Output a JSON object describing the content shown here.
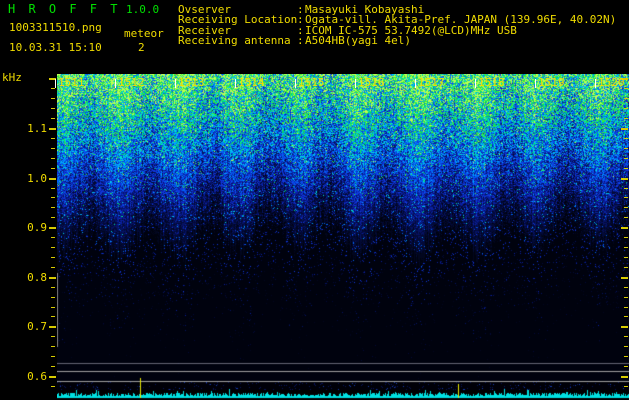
{
  "header": {
    "app_title": "H R O F F T",
    "app_version": "1.0.0",
    "filename": "1003311510.png",
    "mode": "meteor",
    "timestamp": "10.03.31 15:10",
    "count": "2",
    "info_rows": [
      {
        "label": "Ovserver",
        "sep": ":",
        "value": "Masayuki Kobayashi"
      },
      {
        "label": "Receiving Location",
        "sep": ":",
        "value": "Ogata-vill. Akita-Pref. JAPAN (139.96E, 40.02N)"
      },
      {
        "label": "Receiver",
        "sep": ":",
        "value": "ICOM IC-575 53.7492(@LCD)MHz USB"
      },
      {
        "label": "Receiving antenna",
        "sep": ":",
        "value": "A504HB(yagi 4el)"
      }
    ]
  },
  "spectrogram": {
    "y_axis_unit": "kHz",
    "freq_labels": [
      "1.1",
      "1.0",
      "0.9",
      "0.8",
      "0.7",
      "0.6"
    ],
    "freq_axis_top_khz": 1.21,
    "freq_axis_bottom_khz": 0.58,
    "time_labels": [
      "1511",
      "1512",
      "1513",
      "1514",
      "1515",
      "1516",
      "1517",
      "1518",
      "1519",
      "1520"
    ],
    "colors": {
      "text_yellow": "#f0dc00",
      "text_green": "#00e000",
      "minute_tick_white": "#ffffff",
      "amplitude_trace_cyan": "#00e1e1",
      "event_marker_yellow": "#e8e800",
      "threshold_line_gray": "#a0a0a0",
      "background": "#000000"
    }
  }
}
